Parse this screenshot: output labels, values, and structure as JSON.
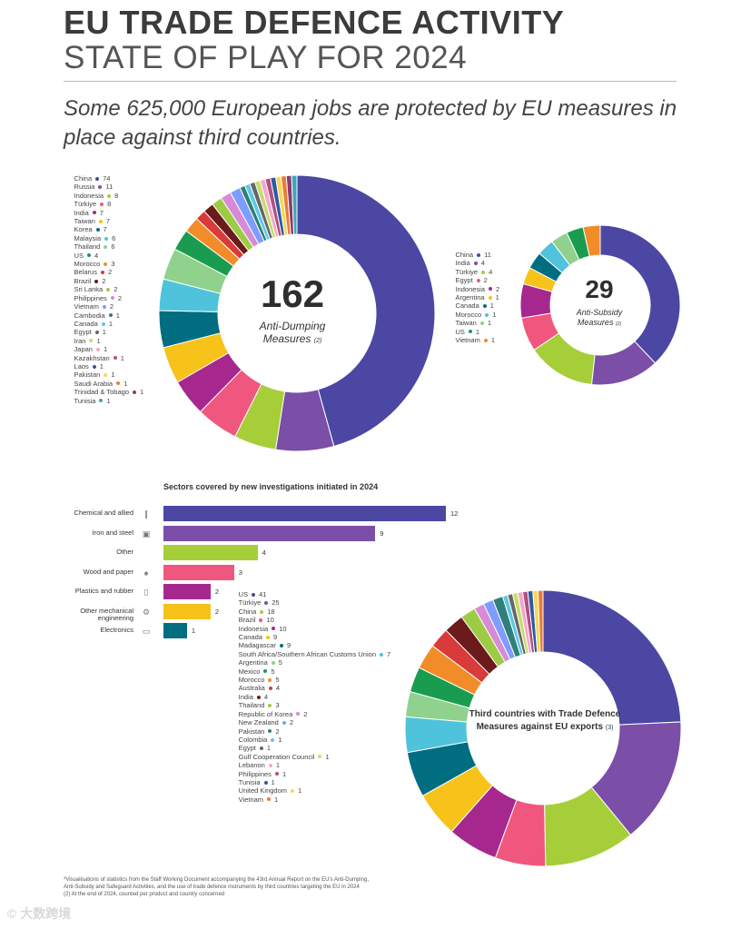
{
  "header": {
    "title": "EU TRADE DEFENCE ACTIVITY",
    "subtitle": "STATE OF PLAY FOR 2024",
    "headline": "Some 625,000 European jobs are protected by EU measures in place against third countries."
  },
  "colors": {
    "palette": [
      "#4b47a3",
      "#7b4ea8",
      "#a6ce39",
      "#f0577e",
      "#a6288e",
      "#f7c21a",
      "#006d80",
      "#4fc3db",
      "#8fd18d",
      "#1a9c50",
      "#f28c28",
      "#d93a3a",
      "#6b1b1b",
      "#9ecb45",
      "#d78bd7",
      "#7f9cff",
      "#2f7f7a",
      "#5ec8e6",
      "#666666",
      "#c4dd6f",
      "#f3a8c9",
      "#b24f82",
      "#2d5aa3",
      "#f6d75a",
      "#e87c3a",
      "#8b3a6b",
      "#3ea6b8"
    ]
  },
  "footnote": {
    "text": "*Visualisations of statistics from the Staff Working Document accompanying the 43rd Annual Report on the EU's Anti-Dumping, Anti-Subsidy and Safeguard Activities, and the use of trade defence instruments by third countries targeting the EU in 2024",
    "note2": "(2) At the end of 2024, counted per product and country concerned"
  },
  "watermark": "© 大数跨境",
  "chart_data": [
    {
      "type": "pie",
      "id": "anti-dumping",
      "center_value": "162",
      "center_label": "Anti-Dumping Measures",
      "center_note": "(2)",
      "categories": [
        "China",
        "Russia",
        "Indonesia",
        "Türkiye",
        "India",
        "Taiwan",
        "Korea",
        "Malaysia",
        "Thailand",
        "US",
        "Morocco",
        "Belarus",
        "Brazil",
        "Sri Lanka",
        "Philippines",
        "Vietnam",
        "Cambodia",
        "Canada",
        "Egypt",
        "Iran",
        "Japan",
        "Kazakhstan",
        "Laos",
        "Pakistan",
        "Saudi Arabia",
        "Trinidad & Tobago",
        "Tunisia"
      ],
      "values": [
        74,
        11,
        8,
        8,
        7,
        7,
        7,
        6,
        6,
        4,
        3,
        2,
        2,
        2,
        2,
        2,
        1,
        1,
        1,
        1,
        1,
        1,
        1,
        1,
        1,
        1,
        1
      ]
    },
    {
      "type": "pie",
      "id": "anti-subsidy",
      "center_value": "29",
      "center_label": "Anti-Subsidy Measures",
      "center_note": "(2)",
      "categories": [
        "China",
        "India",
        "Türkiye",
        "Egypt",
        "Indonesia",
        "Argentina",
        "Canada",
        "Morocco",
        "Taiwan",
        "US",
        "Vietnam"
      ],
      "values": [
        11,
        4,
        4,
        2,
        2,
        1,
        1,
        1,
        1,
        1,
        1
      ]
    },
    {
      "type": "bar",
      "id": "sectors",
      "title": "Sectors covered by new investigations initiated in 2024",
      "categories": [
        "Chemical and allied",
        "Iron and steel",
        "Other",
        "Wood and paper",
        "Plastics and rubber",
        "Other mechanical engineering",
        "Electronics"
      ],
      "values": [
        12,
        9,
        4,
        3,
        2,
        2,
        1
      ],
      "colors": [
        "#4b47a3",
        "#7b4ea8",
        "#a6ce39",
        "#f0577e",
        "#a6288e",
        "#f7c21a",
        "#006d80"
      ],
      "icons": [
        "test-tube-icon",
        "steel-icon",
        "",
        "tree-icon",
        "bottle-icon",
        "gear-icon",
        "electronics-icon"
      ]
    },
    {
      "type": "pie",
      "id": "third-countries",
      "center_label": "Third countries with Trade Defence Measures against EU exports",
      "center_note": "(3)",
      "categories": [
        "US",
        "Türkiye",
        "China",
        "Brazil",
        "Indonesia",
        "Canada",
        "Madagascar",
        "South Africa/Southern African Customs Union",
        "Argentina",
        "Mexico",
        "Morocco",
        "Australia",
        "India",
        "Thailand",
        "Republic of Korea",
        "New Zealand",
        "Pakistan",
        "Colombia",
        "Egypt",
        "Gulf Cooperation Council",
        "Lebanon",
        "Philippines",
        "Tunisia",
        "United Kingdom",
        "Vietnam"
      ],
      "values": [
        41,
        25,
        18,
        10,
        10,
        9,
        9,
        7,
        5,
        5,
        5,
        4,
        4,
        3,
        2,
        2,
        2,
        1,
        1,
        1,
        1,
        1,
        1,
        1,
        1
      ]
    }
  ]
}
